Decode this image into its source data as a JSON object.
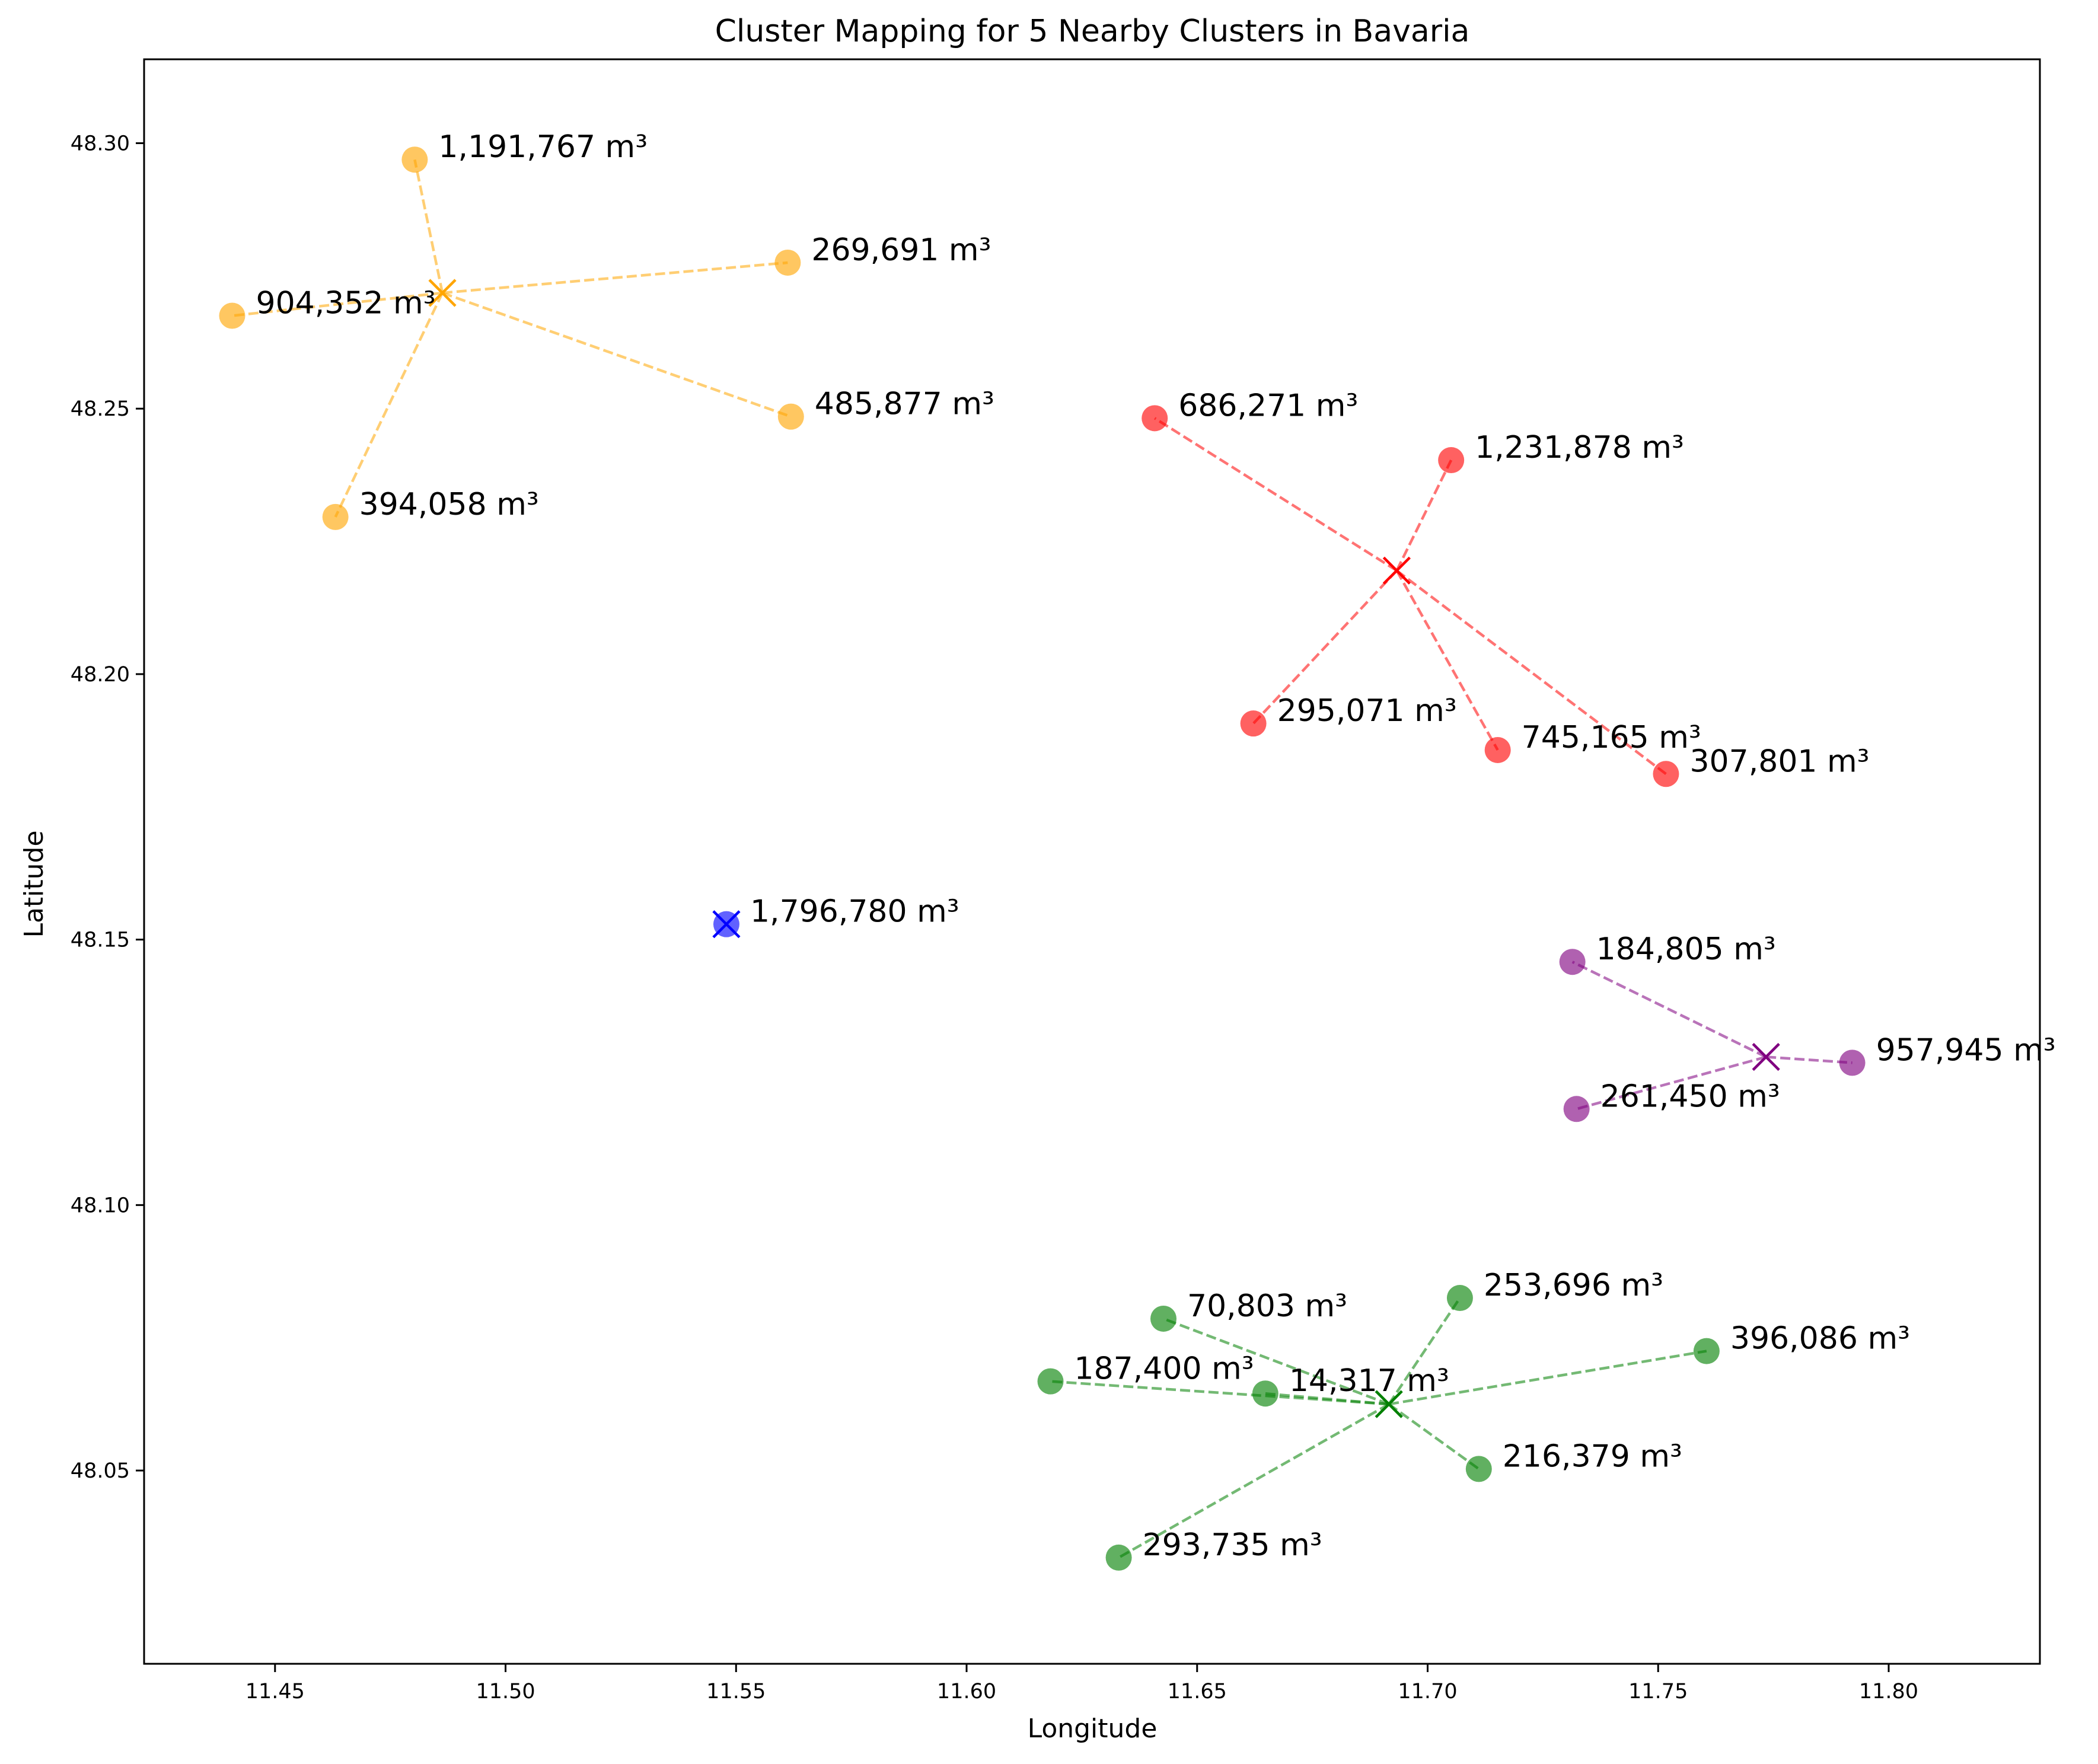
{
  "chart_data": {
    "type": "scatter",
    "title": "Cluster Mapping for 5 Nearby Clusters in Bavaria",
    "xlabel": "Longitude",
    "ylabel": "Latitude",
    "xlim": [
      11.4216,
      11.8328
    ],
    "ylim": [
      48.0136,
      48.3158
    ],
    "xticks": [
      11.45,
      11.5,
      11.55,
      11.6,
      11.65,
      11.7,
      11.75,
      11.8
    ],
    "xtick_labels": [
      "11.45",
      "11.50",
      "11.55",
      "11.60",
      "11.65",
      "11.70",
      "11.75",
      "11.80"
    ],
    "yticks": [
      48.05,
      48.1,
      48.15,
      48.2,
      48.25,
      48.3
    ],
    "ytick_labels": [
      "48.05",
      "48.10",
      "48.15",
      "48.20",
      "48.25",
      "48.30"
    ],
    "grid": false,
    "legend": "none",
    "clusters": [
      {
        "color": "#ffa500",
        "centroid": {
          "x": 11.4863,
          "y": 48.2718
        },
        "points": [
          {
            "x": 11.4803,
            "y": 48.2969,
            "label": "1,191,767 m³"
          },
          {
            "x": 11.5612,
            "y": 48.2775,
            "label": "269,691 m³"
          },
          {
            "x": 11.4407,
            "y": 48.2675,
            "label": "904,352 m³"
          },
          {
            "x": 11.5619,
            "y": 48.2485,
            "label": "485,877 m³"
          },
          {
            "x": 11.4631,
            "y": 48.2296,
            "label": "394,058 m³"
          }
        ]
      },
      {
        "color": "#ff0000",
        "centroid": {
          "x": 11.6933,
          "y": 48.2195
        },
        "points": [
          {
            "x": 11.6408,
            "y": 48.2482,
            "label": "686,271 m³"
          },
          {
            "x": 11.7051,
            "y": 48.2403,
            "label": "1,231,878 m³"
          },
          {
            "x": 11.6622,
            "y": 48.1907,
            "label": "295,071 m³"
          },
          {
            "x": 11.7152,
            "y": 48.1857,
            "label": "745,165 m³"
          },
          {
            "x": 11.7517,
            "y": 48.1812,
            "label": "307,801 m³"
          }
        ]
      },
      {
        "color": "#0000ff",
        "centroid": {
          "x": 11.5479,
          "y": 48.1529
        },
        "points": [
          {
            "x": 11.5479,
            "y": 48.1529,
            "label": "1,796,780 m³"
          }
        ]
      },
      {
        "color": "#800080",
        "centroid": {
          "x": 11.7734,
          "y": 48.1279
        },
        "points": [
          {
            "x": 11.7314,
            "y": 48.1458,
            "label": "184,805 m³"
          },
          {
            "x": 11.7921,
            "y": 48.1268,
            "label": "957,945 m³"
          },
          {
            "x": 11.7323,
            "y": 48.1181,
            "label": "261,450 m³"
          }
        ]
      },
      {
        "color": "#008000",
        "centroid": {
          "x": 11.6916,
          "y": 48.0625
        },
        "points": [
          {
            "x": 11.6427,
            "y": 48.0786,
            "label": "70,803 m³"
          },
          {
            "x": 11.707,
            "y": 48.0825,
            "label": "253,696 m³"
          },
          {
            "x": 11.7605,
            "y": 48.0725,
            "label": "396,086 m³"
          },
          {
            "x": 11.6182,
            "y": 48.0668,
            "label": "187,400 m³"
          },
          {
            "x": 11.6648,
            "y": 48.0645,
            "label": "14,317 m³"
          },
          {
            "x": 11.7111,
            "y": 48.0503,
            "label": "216,379 m³"
          },
          {
            "x": 11.633,
            "y": 48.0336,
            "label": "293,735 m³"
          }
        ]
      }
    ]
  }
}
